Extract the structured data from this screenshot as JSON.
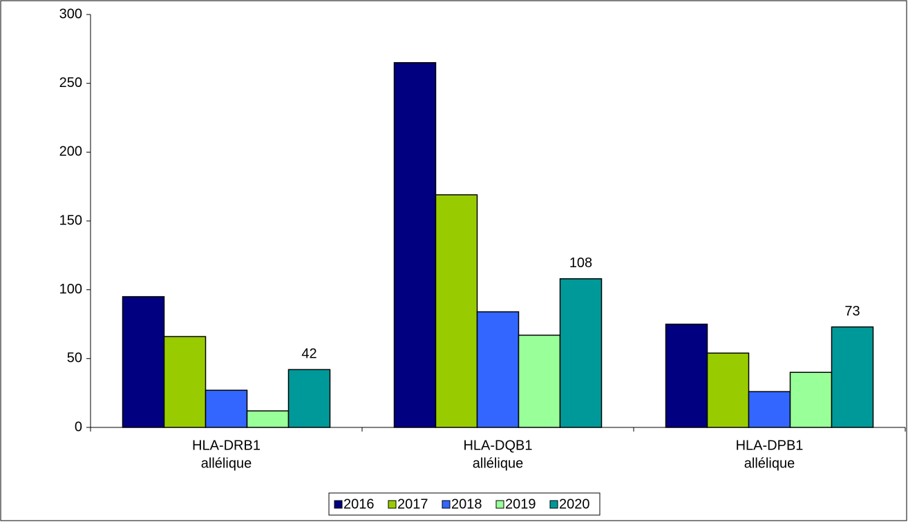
{
  "chart_data": {
    "type": "bar",
    "categories": [
      [
        "HLA-DRB1",
        "allélique"
      ],
      [
        "HLA-DQB1",
        "allélique"
      ],
      [
        "HLA-DPB1",
        "allélique"
      ]
    ],
    "series": [
      {
        "name": "2016",
        "color": "#000080",
        "values": [
          95,
          265,
          75
        ]
      },
      {
        "name": "2017",
        "color": "#99cc00",
        "values": [
          66,
          169,
          54
        ]
      },
      {
        "name": "2018",
        "color": "#3366ff",
        "values": [
          27,
          84,
          26
        ]
      },
      {
        "name": "2019",
        "color": "#99ff99",
        "values": [
          12,
          67,
          40
        ]
      },
      {
        "name": "2020",
        "color": "#009999",
        "values": [
          42,
          108,
          73
        ],
        "data_labels": true
      }
    ],
    "ylim": [
      0,
      300
    ],
    "yticks": [
      0,
      50,
      100,
      150,
      200,
      250,
      300
    ],
    "grid": false,
    "legend": "bottom"
  }
}
